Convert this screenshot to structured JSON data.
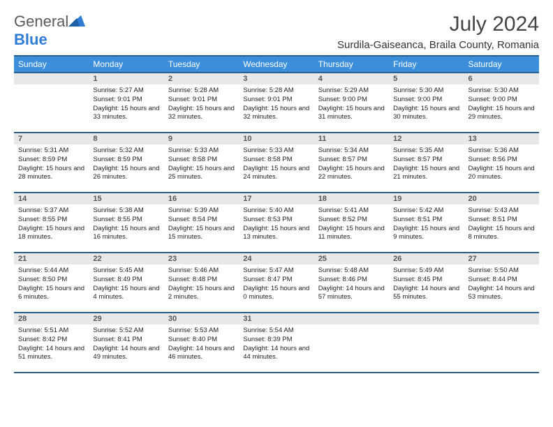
{
  "brand": {
    "text1": "General",
    "text2": "Blue"
  },
  "title": "July 2024",
  "location": "Surdila-Gaiseanca, Braila County, Romania",
  "colors": {
    "header_bg": "#3b8ed9",
    "header_border": "#2a5f8f",
    "daynum_bg": "#e8e8e8",
    "text": "#222222"
  },
  "weekdays": [
    "Sunday",
    "Monday",
    "Tuesday",
    "Wednesday",
    "Thursday",
    "Friday",
    "Saturday"
  ],
  "first_weekday_index": 1,
  "days": [
    {
      "n": 1,
      "sunrise": "5:27 AM",
      "sunset": "9:01 PM",
      "dl": "15 hours and 33 minutes."
    },
    {
      "n": 2,
      "sunrise": "5:28 AM",
      "sunset": "9:01 PM",
      "dl": "15 hours and 32 minutes."
    },
    {
      "n": 3,
      "sunrise": "5:28 AM",
      "sunset": "9:01 PM",
      "dl": "15 hours and 32 minutes."
    },
    {
      "n": 4,
      "sunrise": "5:29 AM",
      "sunset": "9:00 PM",
      "dl": "15 hours and 31 minutes."
    },
    {
      "n": 5,
      "sunrise": "5:30 AM",
      "sunset": "9:00 PM",
      "dl": "15 hours and 30 minutes."
    },
    {
      "n": 6,
      "sunrise": "5:30 AM",
      "sunset": "9:00 PM",
      "dl": "15 hours and 29 minutes."
    },
    {
      "n": 7,
      "sunrise": "5:31 AM",
      "sunset": "8:59 PM",
      "dl": "15 hours and 28 minutes."
    },
    {
      "n": 8,
      "sunrise": "5:32 AM",
      "sunset": "8:59 PM",
      "dl": "15 hours and 26 minutes."
    },
    {
      "n": 9,
      "sunrise": "5:33 AM",
      "sunset": "8:58 PM",
      "dl": "15 hours and 25 minutes."
    },
    {
      "n": 10,
      "sunrise": "5:33 AM",
      "sunset": "8:58 PM",
      "dl": "15 hours and 24 minutes."
    },
    {
      "n": 11,
      "sunrise": "5:34 AM",
      "sunset": "8:57 PM",
      "dl": "15 hours and 22 minutes."
    },
    {
      "n": 12,
      "sunrise": "5:35 AM",
      "sunset": "8:57 PM",
      "dl": "15 hours and 21 minutes."
    },
    {
      "n": 13,
      "sunrise": "5:36 AM",
      "sunset": "8:56 PM",
      "dl": "15 hours and 20 minutes."
    },
    {
      "n": 14,
      "sunrise": "5:37 AM",
      "sunset": "8:55 PM",
      "dl": "15 hours and 18 minutes."
    },
    {
      "n": 15,
      "sunrise": "5:38 AM",
      "sunset": "8:55 PM",
      "dl": "15 hours and 16 minutes."
    },
    {
      "n": 16,
      "sunrise": "5:39 AM",
      "sunset": "8:54 PM",
      "dl": "15 hours and 15 minutes."
    },
    {
      "n": 17,
      "sunrise": "5:40 AM",
      "sunset": "8:53 PM",
      "dl": "15 hours and 13 minutes."
    },
    {
      "n": 18,
      "sunrise": "5:41 AM",
      "sunset": "8:52 PM",
      "dl": "15 hours and 11 minutes."
    },
    {
      "n": 19,
      "sunrise": "5:42 AM",
      "sunset": "8:51 PM",
      "dl": "15 hours and 9 minutes."
    },
    {
      "n": 20,
      "sunrise": "5:43 AM",
      "sunset": "8:51 PM",
      "dl": "15 hours and 8 minutes."
    },
    {
      "n": 21,
      "sunrise": "5:44 AM",
      "sunset": "8:50 PM",
      "dl": "15 hours and 6 minutes."
    },
    {
      "n": 22,
      "sunrise": "5:45 AM",
      "sunset": "8:49 PM",
      "dl": "15 hours and 4 minutes."
    },
    {
      "n": 23,
      "sunrise": "5:46 AM",
      "sunset": "8:48 PM",
      "dl": "15 hours and 2 minutes."
    },
    {
      "n": 24,
      "sunrise": "5:47 AM",
      "sunset": "8:47 PM",
      "dl": "15 hours and 0 minutes."
    },
    {
      "n": 25,
      "sunrise": "5:48 AM",
      "sunset": "8:46 PM",
      "dl": "14 hours and 57 minutes."
    },
    {
      "n": 26,
      "sunrise": "5:49 AM",
      "sunset": "8:45 PM",
      "dl": "14 hours and 55 minutes."
    },
    {
      "n": 27,
      "sunrise": "5:50 AM",
      "sunset": "8:44 PM",
      "dl": "14 hours and 53 minutes."
    },
    {
      "n": 28,
      "sunrise": "5:51 AM",
      "sunset": "8:42 PM",
      "dl": "14 hours and 51 minutes."
    },
    {
      "n": 29,
      "sunrise": "5:52 AM",
      "sunset": "8:41 PM",
      "dl": "14 hours and 49 minutes."
    },
    {
      "n": 30,
      "sunrise": "5:53 AM",
      "sunset": "8:40 PM",
      "dl": "14 hours and 46 minutes."
    },
    {
      "n": 31,
      "sunrise": "5:54 AM",
      "sunset": "8:39 PM",
      "dl": "14 hours and 44 minutes."
    }
  ]
}
